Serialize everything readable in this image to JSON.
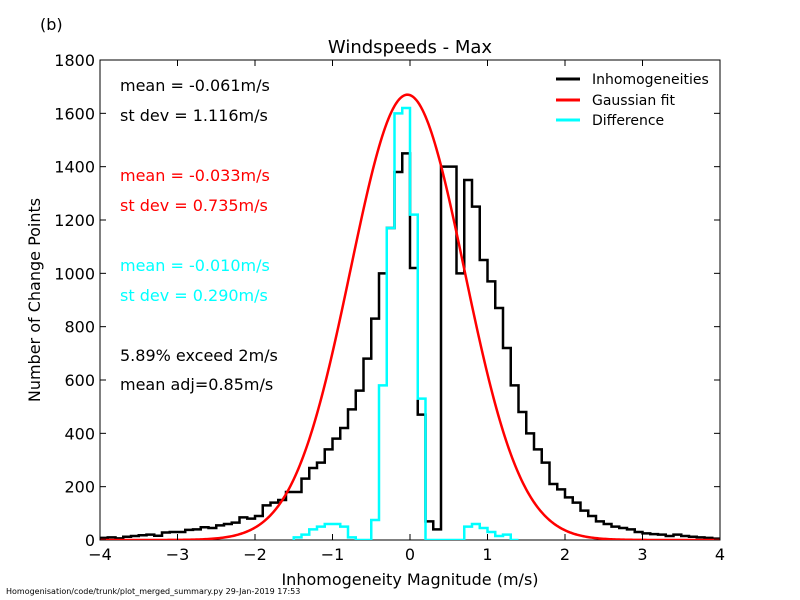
{
  "panel_label": "(b)",
  "footer": "Homogenisation/code/trunk/plot_merged_summary.py   29-Jan-2019 17:53",
  "chart_data": {
    "type": "line",
    "title": "Windspeeds - Max",
    "xlabel": "Inhomogeneity Magnitude (m/s)",
    "ylabel": "Number of Change Points",
    "xlim": [
      -4,
      4
    ],
    "ylim": [
      0,
      1800
    ],
    "xticks": [
      -4,
      -3,
      -2,
      -1,
      0,
      1,
      2,
      3,
      4
    ],
    "xtick_labels": [
      "−4",
      "−3",
      "−2",
      "−1",
      "0",
      "1",
      "2",
      "3",
      "4"
    ],
    "yticks": [
      0,
      200,
      400,
      600,
      800,
      1000,
      1200,
      1400,
      1600,
      1800
    ],
    "ytick_labels": [
      "0",
      "200",
      "400",
      "600",
      "800",
      "1000",
      "1200",
      "1400",
      "1600",
      "1800"
    ],
    "legend": {
      "placement": "top-right",
      "entries": [
        "Inhomogeneities",
        "Gaussian fit",
        "Difference"
      ]
    },
    "annotations": [
      {
        "text": "mean = -0.061m/s",
        "color": "#000000"
      },
      {
        "text": "st dev =  1.116m/s",
        "color": "#000000"
      },
      {
        "text": "mean = -0.033m/s",
        "color": "#ff0000"
      },
      {
        "text": "st dev =  0.735m/s",
        "color": "#ff0000"
      },
      {
        "text": "mean = -0.010m/s",
        "color": "#00ffff"
      },
      {
        "text": "st dev =  0.290m/s",
        "color": "#00ffff"
      },
      {
        "text": "5.89% exceed 2m/s",
        "color": "#000000"
      },
      {
        "text": "mean adj=0.85m/s",
        "color": "#000000"
      }
    ],
    "series": [
      {
        "name": "Inhomogeneities",
        "color": "#000000",
        "style": "step",
        "bin_width": 0.1,
        "bin_start": -4.0,
        "values": [
          8,
          10,
          6,
          12,
          15,
          18,
          20,
          16,
          28,
          30,
          30,
          38,
          40,
          48,
          45,
          55,
          60,
          65,
          85,
          80,
          90,
          130,
          140,
          150,
          180,
          180,
          230,
          270,
          290,
          340,
          380,
          420,
          490,
          560,
          680,
          830,
          1000,
          1170,
          1380,
          1450,
          1020,
          470,
          70,
          40,
          1400,
          1400,
          1000,
          1350,
          1250,
          1050,
          970,
          870,
          720,
          580,
          480,
          400,
          340,
          290,
          210,
          190,
          160,
          140,
          110,
          90,
          70,
          60,
          50,
          45,
          40,
          30,
          25,
          22,
          20,
          15,
          20,
          15,
          12,
          10,
          8,
          5
        ]
      },
      {
        "name": "Gaussian fit",
        "color": "#ff0000",
        "style": "curve",
        "amplitude": 1670,
        "mean": -0.033,
        "sigma": 0.735
      },
      {
        "name": "Difference",
        "color": "#00ffff",
        "style": "step",
        "bin_width": 0.1,
        "bin_start": -1.5,
        "values": [
          10,
          20,
          40,
          50,
          60,
          60,
          50,
          10,
          0,
          0,
          75,
          580,
          1170,
          1600,
          1620,
          1220,
          530,
          0,
          0,
          0,
          0,
          0,
          50,
          60,
          45,
          30,
          15,
          20,
          0
        ]
      }
    ]
  }
}
